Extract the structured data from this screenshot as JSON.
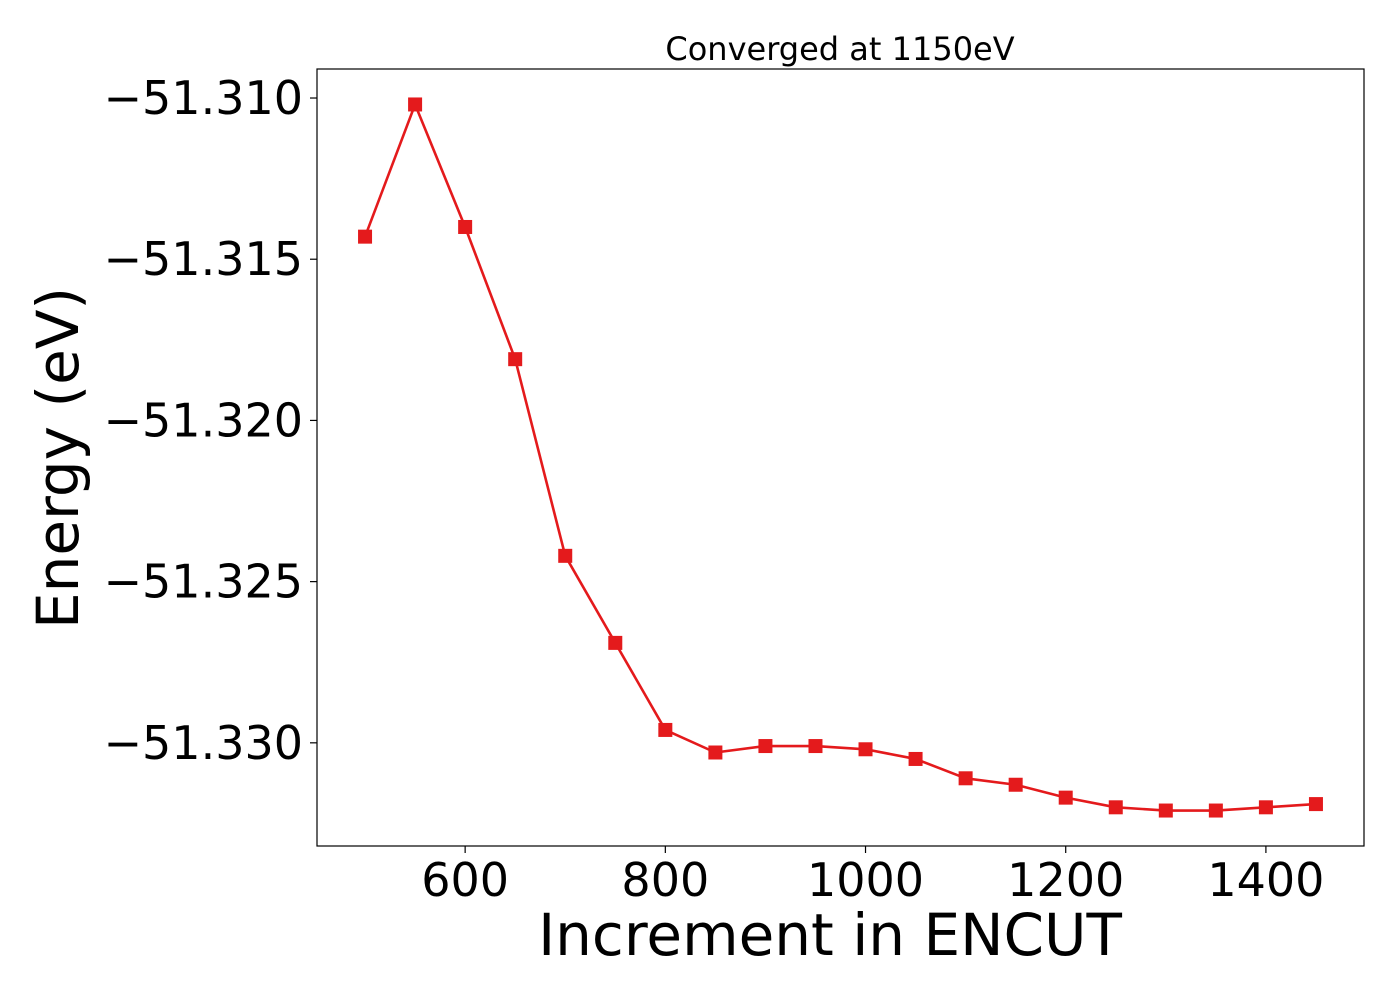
{
  "chart_data": {
    "type": "line",
    "title": "Converged at 1150eV",
    "xlabel": "Increment in ENCUT",
    "ylabel": "Energy (eV)",
    "xlim": [
      452,
      1498
    ],
    "ylim": [
      -51.3332,
      -51.3091
    ],
    "x_ticks": [
      600,
      800,
      1000,
      1200,
      1400
    ],
    "x_tick_labels": [
      "600",
      "800",
      "1000",
      "1200",
      "1400"
    ],
    "y_ticks": [
      -51.31,
      -51.315,
      -51.32,
      -51.325,
      -51.33
    ],
    "y_tick_labels": [
      "−51.310",
      "−51.315",
      "−51.320",
      "−51.325",
      "−51.330"
    ],
    "grid": false,
    "series": [
      {
        "color": "#e41a1c",
        "marker": "square",
        "x": [
          500,
          550,
          600,
          650,
          700,
          750,
          800,
          850,
          900,
          950,
          1000,
          1050,
          1100,
          1150,
          1200,
          1250,
          1300,
          1350,
          1400,
          1450
        ],
        "y": [
          -51.3143,
          -51.3102,
          -51.314,
          -51.3181,
          -51.3242,
          -51.3269,
          -51.3296,
          -51.3303,
          -51.3301,
          -51.3301,
          -51.3302,
          -51.3305,
          -51.3311,
          -51.3313,
          -51.3317,
          -51.332,
          -51.3321,
          -51.3321,
          -51.332,
          -51.3319
        ]
      }
    ]
  }
}
